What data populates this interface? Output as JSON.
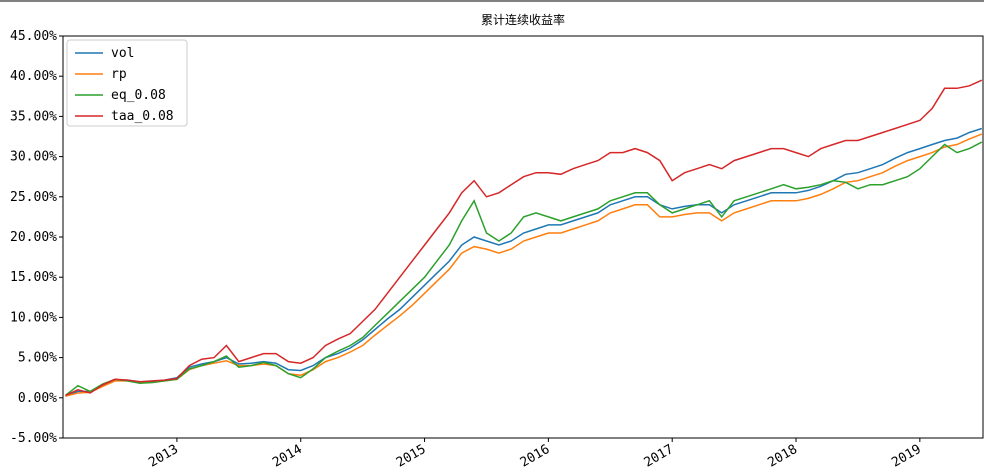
{
  "chart_data": {
    "type": "line",
    "title": "累计连续收益率",
    "x": [
      2012.1,
      2012.2,
      2012.3,
      2012.4,
      2012.5,
      2012.6,
      2012.7,
      2012.8,
      2012.9,
      2013.0,
      2013.1,
      2013.2,
      2013.3,
      2013.4,
      2013.5,
      2013.6,
      2013.7,
      2013.8,
      2013.9,
      2014.0,
      2014.1,
      2014.2,
      2014.3,
      2014.4,
      2014.5,
      2014.6,
      2014.7,
      2014.8,
      2014.9,
      2015.0,
      2015.1,
      2015.2,
      2015.3,
      2015.4,
      2015.5,
      2015.6,
      2015.7,
      2015.8,
      2015.9,
      2016.0,
      2016.1,
      2016.2,
      2016.3,
      2016.4,
      2016.5,
      2016.6,
      2016.7,
      2016.8,
      2016.9,
      2017.0,
      2017.1,
      2017.2,
      2017.3,
      2017.4,
      2017.5,
      2017.6,
      2017.7,
      2017.8,
      2017.9,
      2018.0,
      2018.1,
      2018.2,
      2018.3,
      2018.4,
      2018.5,
      2018.6,
      2018.7,
      2018.8,
      2018.9,
      2019.0,
      2019.1,
      2019.2,
      2019.3,
      2019.4,
      2019.5
    ],
    "series": [
      {
        "name": "vol",
        "color": "#1f77b4",
        "values": [
          0.2,
          0.8,
          0.8,
          1.5,
          2.2,
          2.2,
          2.0,
          2.0,
          2.2,
          2.5,
          3.8,
          4.2,
          4.5,
          5.0,
          4.2,
          4.3,
          4.5,
          4.3,
          3.5,
          3.4,
          4.0,
          5.0,
          5.5,
          6.2,
          7.2,
          8.5,
          9.8,
          11.0,
          12.5,
          14.0,
          15.5,
          17.0,
          19.0,
          20.0,
          19.5,
          19.0,
          19.5,
          20.5,
          21.0,
          21.5,
          21.5,
          22.0,
          22.5,
          23.0,
          24.0,
          24.5,
          25.0,
          25.0,
          24.0,
          23.5,
          23.8,
          24.0,
          24.0,
          23.0,
          24.0,
          24.5,
          25.0,
          25.5,
          25.5,
          25.5,
          25.8,
          26.3,
          27.0,
          27.8,
          28.0,
          28.5,
          29.0,
          29.8,
          30.5,
          31.0,
          31.5,
          32.0,
          32.3,
          33.0,
          33.5
        ]
      },
      {
        "name": "rp",
        "color": "#ff7f0e",
        "values": [
          0.2,
          0.6,
          0.7,
          1.4,
          2.1,
          2.1,
          1.9,
          1.9,
          2.1,
          2.3,
          3.5,
          4.0,
          4.3,
          4.6,
          4.0,
          4.0,
          4.2,
          4.0,
          3.0,
          2.8,
          3.5,
          4.5,
          5.0,
          5.7,
          6.5,
          7.8,
          9.0,
          10.2,
          11.5,
          13.0,
          14.5,
          16.0,
          18.0,
          18.8,
          18.5,
          18.0,
          18.5,
          19.5,
          20.0,
          20.5,
          20.5,
          21.0,
          21.5,
          22.0,
          23.0,
          23.5,
          24.0,
          24.0,
          22.5,
          22.5,
          22.8,
          23.0,
          23.0,
          22.0,
          23.0,
          23.5,
          24.0,
          24.5,
          24.5,
          24.5,
          24.8,
          25.3,
          26.0,
          26.8,
          27.0,
          27.5,
          28.0,
          28.8,
          29.5,
          30.0,
          30.5,
          31.2,
          31.5,
          32.2,
          32.8
        ]
      },
      {
        "name": "eq_0.08",
        "color": "#2ca02c",
        "values": [
          0.3,
          1.5,
          0.8,
          1.7,
          2.3,
          2.1,
          1.8,
          1.9,
          2.1,
          2.3,
          3.6,
          4.0,
          4.5,
          5.2,
          3.8,
          4.0,
          4.4,
          4.0,
          3.0,
          2.5,
          3.6,
          5.0,
          5.8,
          6.5,
          7.5,
          9.0,
          10.5,
          12.0,
          13.5,
          15.0,
          17.0,
          19.0,
          22.0,
          24.5,
          20.5,
          19.5,
          20.5,
          22.5,
          23.0,
          22.5,
          22.0,
          22.5,
          23.0,
          23.5,
          24.5,
          25.0,
          25.5,
          25.5,
          24.0,
          23.0,
          23.5,
          24.0,
          24.5,
          22.5,
          24.5,
          25.0,
          25.5,
          26.0,
          26.5,
          26.0,
          26.2,
          26.5,
          27.0,
          26.8,
          26.0,
          26.5,
          26.5,
          27.0,
          27.5,
          28.5,
          30.0,
          31.5,
          30.5,
          31.0,
          31.8
        ]
      },
      {
        "name": "taa_0.08",
        "color": "#d62728",
        "values": [
          0.3,
          1.0,
          0.6,
          1.6,
          2.3,
          2.2,
          2.0,
          2.1,
          2.2,
          2.4,
          4.0,
          4.8,
          5.0,
          6.5,
          4.5,
          5.0,
          5.5,
          5.5,
          4.5,
          4.3,
          5.0,
          6.5,
          7.3,
          8.0,
          9.5,
          11.0,
          13.0,
          15.0,
          17.0,
          19.0,
          21.0,
          23.0,
          25.5,
          27.0,
          25.0,
          25.5,
          26.5,
          27.5,
          28.0,
          28.0,
          27.8,
          28.5,
          29.0,
          29.5,
          30.5,
          30.5,
          31.0,
          30.5,
          29.5,
          27.0,
          28.0,
          28.5,
          29.0,
          28.5,
          29.5,
          30.0,
          30.5,
          31.0,
          31.0,
          30.5,
          30.0,
          31.0,
          31.5,
          32.0,
          32.0,
          32.5,
          33.0,
          33.5,
          34.0,
          34.5,
          36.0,
          38.5,
          38.5,
          38.8,
          39.5
        ]
      }
    ],
    "xlim": [
      2012.08,
      2019.51
    ],
    "xticks": [
      2013,
      2014,
      2015,
      2016,
      2017,
      2018,
      2019
    ],
    "ylim": [
      -5,
      45
    ],
    "yticks": [
      {
        "value": -5,
        "label": "-5.00%"
      },
      {
        "value": 0,
        "label": "0.00%"
      },
      {
        "value": 5,
        "label": "5.00%"
      },
      {
        "value": 10,
        "label": "10.00%"
      },
      {
        "value": 15,
        "label": "15.00%"
      },
      {
        "value": 20,
        "label": "20.00%"
      },
      {
        "value": 25,
        "label": "25.00%"
      },
      {
        "value": 30,
        "label": "30.00%"
      },
      {
        "value": 35,
        "label": "35.00%"
      },
      {
        "value": 40,
        "label": "40.00%"
      },
      {
        "value": 45,
        "label": "45.00%"
      }
    ],
    "legend": "upper left"
  }
}
